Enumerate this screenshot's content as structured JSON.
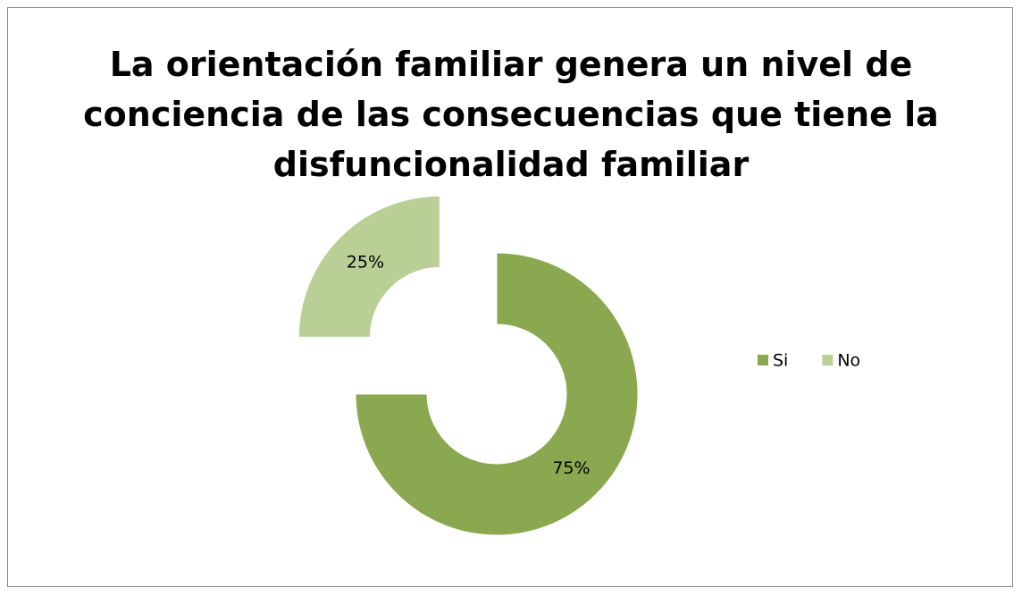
{
  "chart_data": {
    "type": "donut",
    "title": "La orientación familiar genera un nivel de\nconciencia de las consecuencias que tiene la\ndisfuncionalidad familiar",
    "categories": [
      "Si",
      "No"
    ],
    "values": [
      75,
      25
    ],
    "value_labels": [
      "75%",
      "25%"
    ],
    "colors": [
      "#8aa84f",
      "#b9cf96"
    ],
    "explode": [
      false,
      true
    ],
    "legend": "right"
  }
}
